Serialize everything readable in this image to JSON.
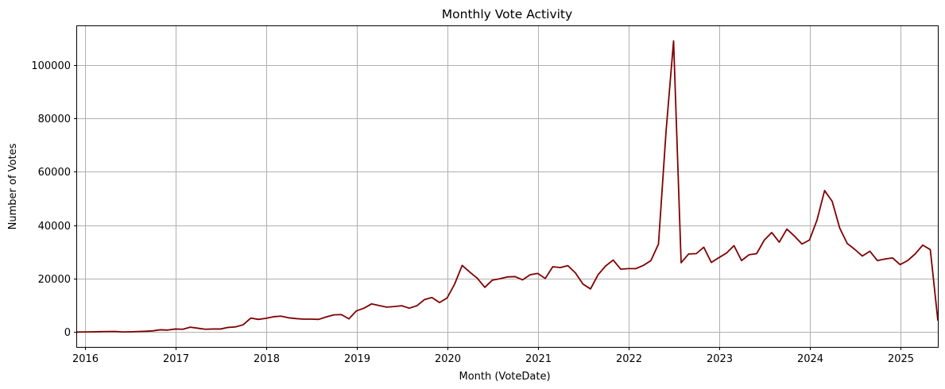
{
  "chart_data": {
    "type": "line",
    "title": "Monthly Vote Activity",
    "xlabel": "Month (VoteDate)",
    "ylabel": "Number of Votes",
    "x_unit": "month",
    "xlim": [
      "2015-12",
      "2025-06"
    ],
    "ylim": [
      -5500,
      114500
    ],
    "x_ticks": [
      "2016",
      "2017",
      "2018",
      "2019",
      "2020",
      "2021",
      "2022",
      "2023",
      "2024",
      "2025"
    ],
    "y_ticks": [
      0,
      20000,
      40000,
      60000,
      80000,
      100000
    ],
    "y_tick_labels": [
      "0",
      "20000",
      "40000",
      "60000",
      "80000",
      "100000"
    ],
    "grid": true,
    "legend": "none",
    "series": [
      {
        "color": "#800000",
        "points": [
          [
            "2015-12",
            50
          ],
          [
            "2016-01",
            100
          ],
          [
            "2016-02",
            150
          ],
          [
            "2016-03",
            200
          ],
          [
            "2016-04",
            250
          ],
          [
            "2016-05",
            300
          ],
          [
            "2016-06",
            100
          ],
          [
            "2016-07",
            150
          ],
          [
            "2016-08",
            250
          ],
          [
            "2016-09",
            350
          ],
          [
            "2016-10",
            500
          ],
          [
            "2016-11",
            900
          ],
          [
            "2016-12",
            800
          ],
          [
            "2017-01",
            1200
          ],
          [
            "2017-02",
            1100
          ],
          [
            "2017-03",
            1900
          ],
          [
            "2017-04",
            1500
          ],
          [
            "2017-05",
            1100
          ],
          [
            "2017-06",
            1200
          ],
          [
            "2017-07",
            1200
          ],
          [
            "2017-08",
            1800
          ],
          [
            "2017-09",
            2000
          ],
          [
            "2017-10",
            2800
          ],
          [
            "2017-11",
            5300
          ],
          [
            "2017-12",
            4800
          ],
          [
            "2018-01",
            5200
          ],
          [
            "2018-02",
            5800
          ],
          [
            "2018-03",
            6000
          ],
          [
            "2018-04",
            5400
          ],
          [
            "2018-05",
            5100
          ],
          [
            "2018-06",
            4900
          ],
          [
            "2018-07",
            4900
          ],
          [
            "2018-08",
            4800
          ],
          [
            "2018-09",
            5700
          ],
          [
            "2018-10",
            6500
          ],
          [
            "2018-11",
            6600
          ],
          [
            "2018-12",
            5000
          ],
          [
            "2019-01",
            8000
          ],
          [
            "2019-02",
            9000
          ],
          [
            "2019-03",
            10600
          ],
          [
            "2019-04",
            10000
          ],
          [
            "2019-05",
            9400
          ],
          [
            "2019-06",
            9600
          ],
          [
            "2019-07",
            9900
          ],
          [
            "2019-08",
            9000
          ],
          [
            "2019-09",
            9900
          ],
          [
            "2019-10",
            12200
          ],
          [
            "2019-11",
            13000
          ],
          [
            "2019-12",
            11100
          ],
          [
            "2020-01",
            12800
          ],
          [
            "2020-02",
            18000
          ],
          [
            "2020-03",
            25000
          ],
          [
            "2020-04",
            22500
          ],
          [
            "2020-05",
            20200
          ],
          [
            "2020-06",
            16800
          ],
          [
            "2020-07",
            19500
          ],
          [
            "2020-08",
            20000
          ],
          [
            "2020-09",
            20700
          ],
          [
            "2020-10",
            20800
          ],
          [
            "2020-11",
            19600
          ],
          [
            "2020-12",
            21500
          ],
          [
            "2021-01",
            22000
          ],
          [
            "2021-02",
            20100
          ],
          [
            "2021-03",
            24500
          ],
          [
            "2021-04",
            24200
          ],
          [
            "2021-05",
            24900
          ],
          [
            "2021-06",
            22200
          ],
          [
            "2021-07",
            18000
          ],
          [
            "2021-08",
            16200
          ],
          [
            "2021-09",
            21500
          ],
          [
            "2021-10",
            24800
          ],
          [
            "2021-11",
            27000
          ],
          [
            "2021-12",
            23600
          ],
          [
            "2022-01",
            23800
          ],
          [
            "2022-02",
            23800
          ],
          [
            "2022-03",
            25000
          ],
          [
            "2022-04",
            26800
          ],
          [
            "2022-05",
            33000
          ],
          [
            "2022-06",
            75000
          ],
          [
            "2022-07",
            109000
          ],
          [
            "2022-08",
            26000
          ],
          [
            "2022-09",
            29300
          ],
          [
            "2022-10",
            29400
          ],
          [
            "2022-11",
            31800
          ],
          [
            "2022-12",
            26100
          ],
          [
            "2023-01",
            27900
          ],
          [
            "2023-02",
            29600
          ],
          [
            "2023-03",
            32400
          ],
          [
            "2023-04",
            26800
          ],
          [
            "2023-05",
            29000
          ],
          [
            "2023-06",
            29400
          ],
          [
            "2023-07",
            34400
          ],
          [
            "2023-08",
            37300
          ],
          [
            "2023-09",
            33700
          ],
          [
            "2023-10",
            38600
          ],
          [
            "2023-11",
            36000
          ],
          [
            "2023-12",
            33000
          ],
          [
            "2024-01",
            34500
          ],
          [
            "2024-02",
            42000
          ],
          [
            "2024-03",
            53000
          ],
          [
            "2024-04",
            49000
          ],
          [
            "2024-05",
            39000
          ],
          [
            "2024-06",
            33200
          ],
          [
            "2024-07",
            31000
          ],
          [
            "2024-08",
            28500
          ],
          [
            "2024-09",
            30300
          ],
          [
            "2024-10",
            26800
          ],
          [
            "2024-11",
            27400
          ],
          [
            "2024-12",
            27800
          ],
          [
            "2025-01",
            25300
          ],
          [
            "2025-02",
            26800
          ],
          [
            "2025-03",
            29300
          ],
          [
            "2025-04",
            32600
          ],
          [
            "2025-05",
            30900
          ],
          [
            "2025-06",
            4500
          ]
        ]
      }
    ]
  }
}
